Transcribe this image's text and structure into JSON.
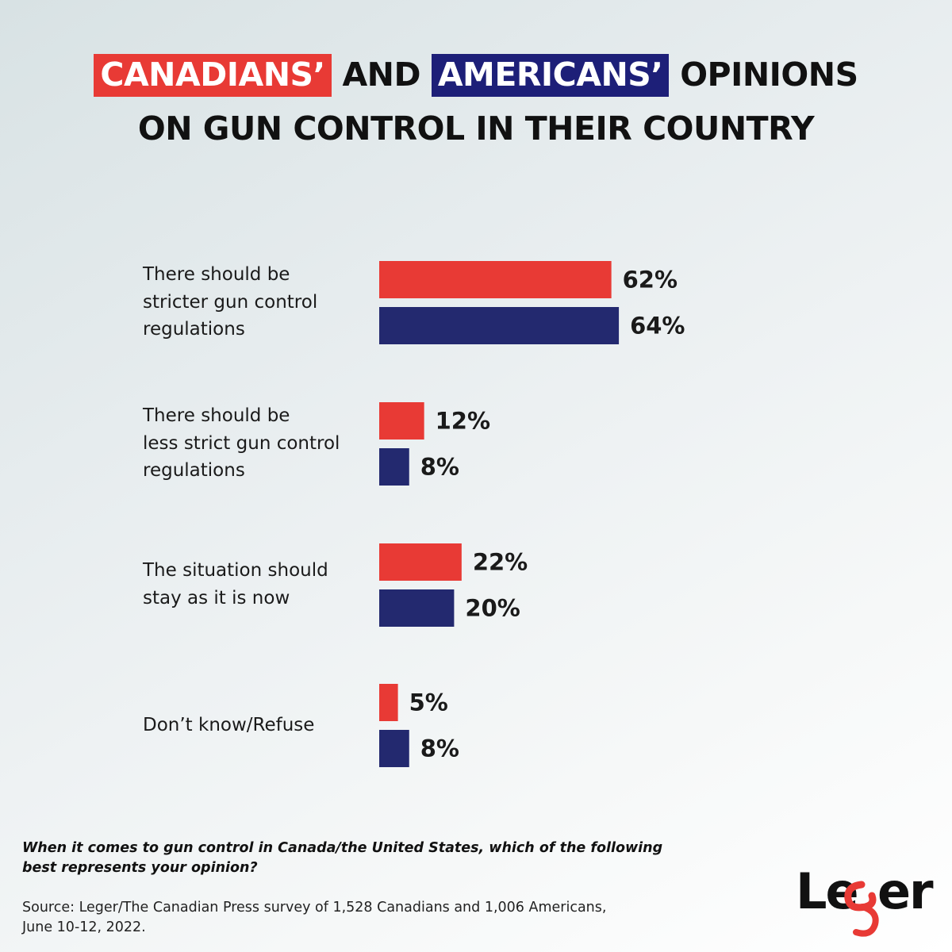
{
  "title": {
    "line1_part1": "CANADIANS’",
    "line1_part2": " AND ",
    "line1_part3": "AMERICANS’",
    "line1_part4": " OPINIONS",
    "line2": "ON GUN CONTROL IN THEIR COUNTRY"
  },
  "colors": {
    "canada": "#e83a35",
    "usa": "#23296f"
  },
  "chart_data": {
    "type": "bar",
    "orientation": "horizontal",
    "categories": [
      "There should be\nstricter gun control\nregulations",
      "There should be\nless strict gun control\nregulations",
      "The situation should\nstay as it is now",
      "Don’t know/Refuse"
    ],
    "series": [
      {
        "values": [
          62,
          12,
          22,
          5
        ],
        "color": "#e83a35"
      },
      {
        "values": [
          64,
          8,
          20,
          8
        ],
        "color": "#23296f"
      }
    ],
    "value_suffix": "%",
    "grid": false,
    "legend": "none"
  },
  "question": "When it comes to gun control in Canada/the United States, which of the following best represents your opinion?",
  "source": "Source: Leger/The Canadian Press survey of 1,528 Canadians and 1,006 Americans,\nJune 10-12, 2022.",
  "logo": {
    "text": "Leger"
  }
}
